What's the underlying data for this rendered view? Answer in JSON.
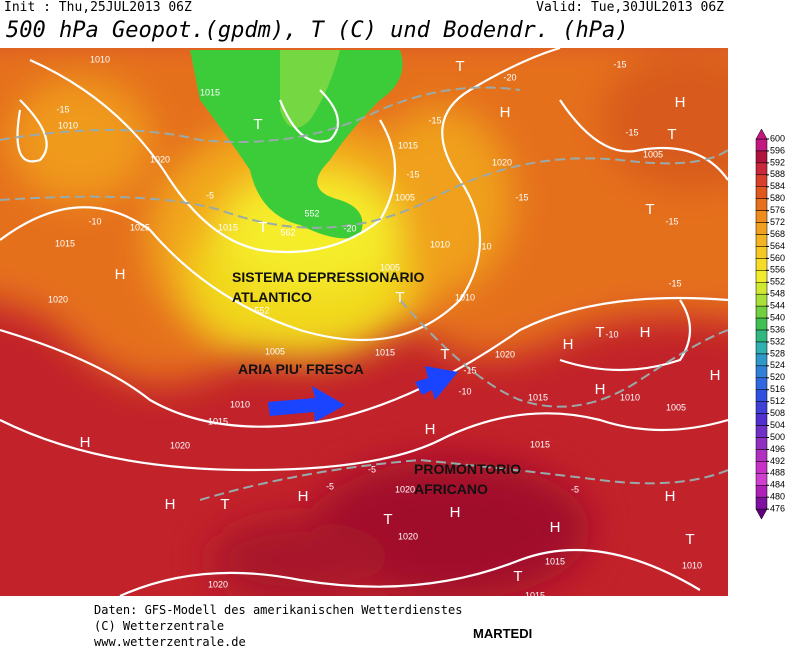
{
  "header": {
    "init": "Init : Thu,25JUL2013 06Z",
    "valid": "Valid: Tue,30JUL2013 06Z",
    "title": "500 hPa Geopot.(gpdm), T (C) und Bodendr. (hPa)"
  },
  "annotations": [
    "SISTEMA DEPRESSIONARIO",
    "ATLANTICO",
    "ARIA PIU' FRESCA",
    "PROMONTORIO",
    "AFRICANO"
  ],
  "map": {
    "labels": [
      "H",
      "H",
      "H",
      "H",
      "H",
      "H",
      "H",
      "H",
      "H",
      "H",
      "H",
      "H",
      "H",
      "H",
      "T",
      "T",
      "T",
      "T",
      "T",
      "T",
      "T",
      "T",
      "T",
      "T",
      "T",
      "T",
      "1010",
      "1015",
      "1010",
      "1020",
      "1025",
      "1015",
      "1020",
      "1015",
      "1015",
      "1020",
      "1005",
      "1005",
      "1010",
      "1005",
      "1010",
      "1005",
      "1015",
      "1010",
      "1015",
      "1020",
      "1020",
      "1015",
      "1005",
      "1010",
      "1015",
      "1020",
      "1020",
      "1020",
      "1015",
      "1010",
      "1015",
      "-15",
      "-15",
      "-20",
      "-15",
      "-15",
      "-15",
      "-15",
      "-10",
      "-5",
      "-10",
      "-15",
      "-15",
      "-10",
      "-15",
      "-10",
      "-5",
      "-5",
      "-5",
      "-20",
      "552",
      "552",
      "562"
    ]
  },
  "colorbar": {
    "levels": [
      600,
      596,
      592,
      588,
      584,
      580,
      576,
      572,
      568,
      564,
      560,
      556,
      552,
      548,
      544,
      540,
      536,
      532,
      528,
      524,
      520,
      516,
      512,
      508,
      504,
      500,
      496,
      492,
      488,
      484,
      480,
      476
    ]
  },
  "footer": {
    "lines": [
      "Daten: GFS-Modell des amerikanischen Wetterdienstes",
      "(C) Wetterzentrale",
      "www.wetterzentrale.de"
    ],
    "day": "MARTEDI"
  }
}
